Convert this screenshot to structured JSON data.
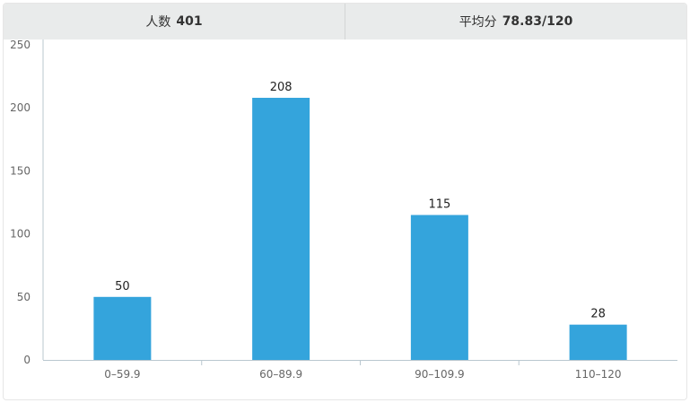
{
  "summary": {
    "count_label": "人数",
    "count_value": "401",
    "average_label": "平均分",
    "average_value": "78.83/120"
  },
  "chart_data": {
    "type": "bar",
    "categories": [
      "0–59.9",
      "60–89.9",
      "90–109.9",
      "110–120"
    ],
    "values": [
      50,
      208,
      115,
      28
    ],
    "ylim": [
      0,
      250
    ],
    "yticks": [
      0,
      50,
      100,
      150,
      200,
      250
    ],
    "grid": false,
    "legend": "none",
    "bar_color": "#34a4dc",
    "axis_color": "#b9c7cf"
  }
}
